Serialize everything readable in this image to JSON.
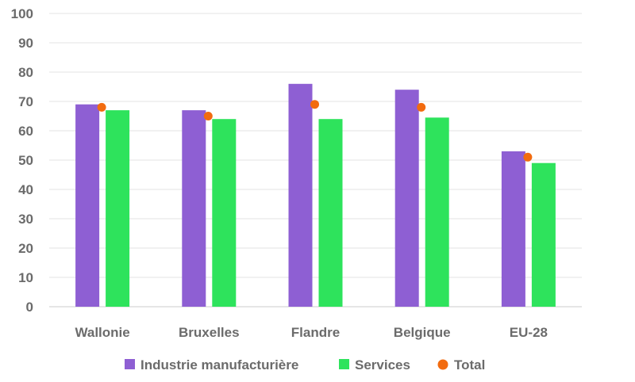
{
  "chart_data": {
    "type": "bar",
    "title": "",
    "xlabel": "",
    "ylabel": "",
    "ylim": [
      0,
      100
    ],
    "yticks": [
      0,
      10,
      20,
      30,
      40,
      50,
      60,
      70,
      80,
      90,
      100
    ],
    "grid": true,
    "legend_position": "bottom",
    "categories": [
      "Wallonie",
      "Bruxelles",
      "Flandre",
      "Belgique",
      "EU-28"
    ],
    "series": [
      {
        "name": "Industrie manufacturière",
        "kind": "bar",
        "color": "#8e5fd3",
        "values": [
          69,
          67,
          76,
          74,
          53
        ]
      },
      {
        "name": "Services",
        "kind": "bar",
        "color": "#2ee35c",
        "values": [
          67,
          64,
          64,
          64.5,
          49
        ]
      },
      {
        "name": "Total",
        "kind": "point",
        "color": "#f26b0f",
        "values": [
          68,
          65,
          69,
          68,
          51
        ]
      }
    ]
  }
}
